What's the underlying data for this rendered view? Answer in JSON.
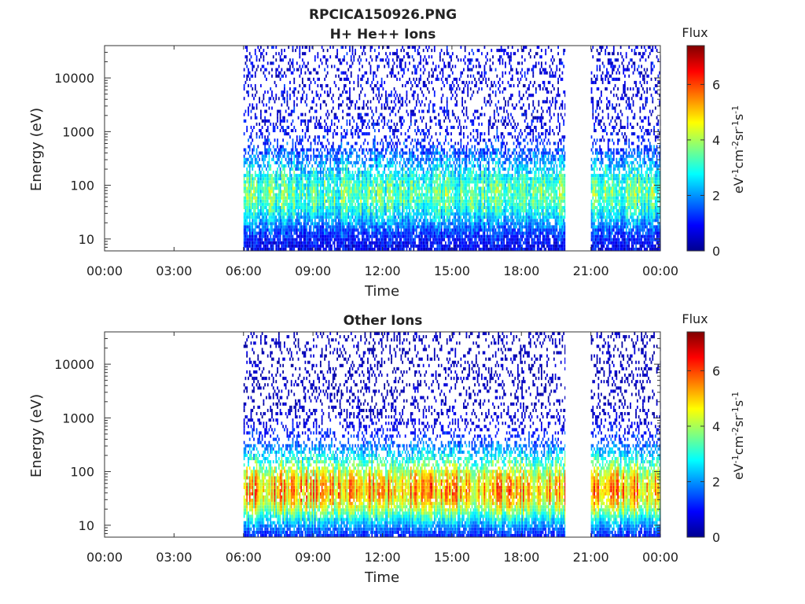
{
  "figure": {
    "title_line1": "RPCICA150926.PNG"
  },
  "chart_data": [
    {
      "type": "heatmap",
      "title": "H+ He++ Ions",
      "xlabel": "Time",
      "ylabel": "Energy (eV)",
      "x_ticks": [
        "00:00",
        "03:00",
        "06:00",
        "09:00",
        "12:00",
        "15:00",
        "18:00",
        "21:00",
        "00:00"
      ],
      "x_range_hours": [
        0,
        24
      ],
      "y_scale": "log",
      "y_ticks": [
        "10",
        "100",
        "1000",
        "10000"
      ],
      "y_range_eV": [
        6,
        40000
      ],
      "data_intervals_hours": [
        [
          6.0,
          19.9
        ],
        [
          21.0,
          24.0
        ]
      ],
      "colorbar": {
        "label": "Flux",
        "units": "eV-1cm-2sr-1s-1",
        "range": [
          0,
          7.4
        ],
        "ticks": [
          "0",
          "2",
          "4",
          "6"
        ],
        "colormap": "jet"
      },
      "features": {
        "band_center_eV": 60,
        "band_peak_flux": 2.8,
        "high_energy_background_flux": 1.0
      }
    },
    {
      "type": "heatmap",
      "title": "Other Ions",
      "xlabel": "Time",
      "ylabel": "Energy (eV)",
      "x_ticks": [
        "00:00",
        "03:00",
        "06:00",
        "09:00",
        "12:00",
        "15:00",
        "18:00",
        "21:00",
        "00:00"
      ],
      "x_range_hours": [
        0,
        24
      ],
      "y_scale": "log",
      "y_ticks": [
        "10",
        "100",
        "1000",
        "10000"
      ],
      "y_range_eV": [
        6,
        40000
      ],
      "data_intervals_hours": [
        [
          6.0,
          19.9
        ],
        [
          21.0,
          24.0
        ]
      ],
      "colorbar": {
        "label": "Flux",
        "units": "eV-1cm-2sr-1s-1",
        "range": [
          0,
          7.4
        ],
        "ticks": [
          "0",
          "2",
          "4",
          "6"
        ],
        "colormap": "jet"
      },
      "features": {
        "band_center_eV": 40,
        "band_peak_flux": 4.8,
        "high_energy_background_flux": 0.6
      }
    }
  ]
}
